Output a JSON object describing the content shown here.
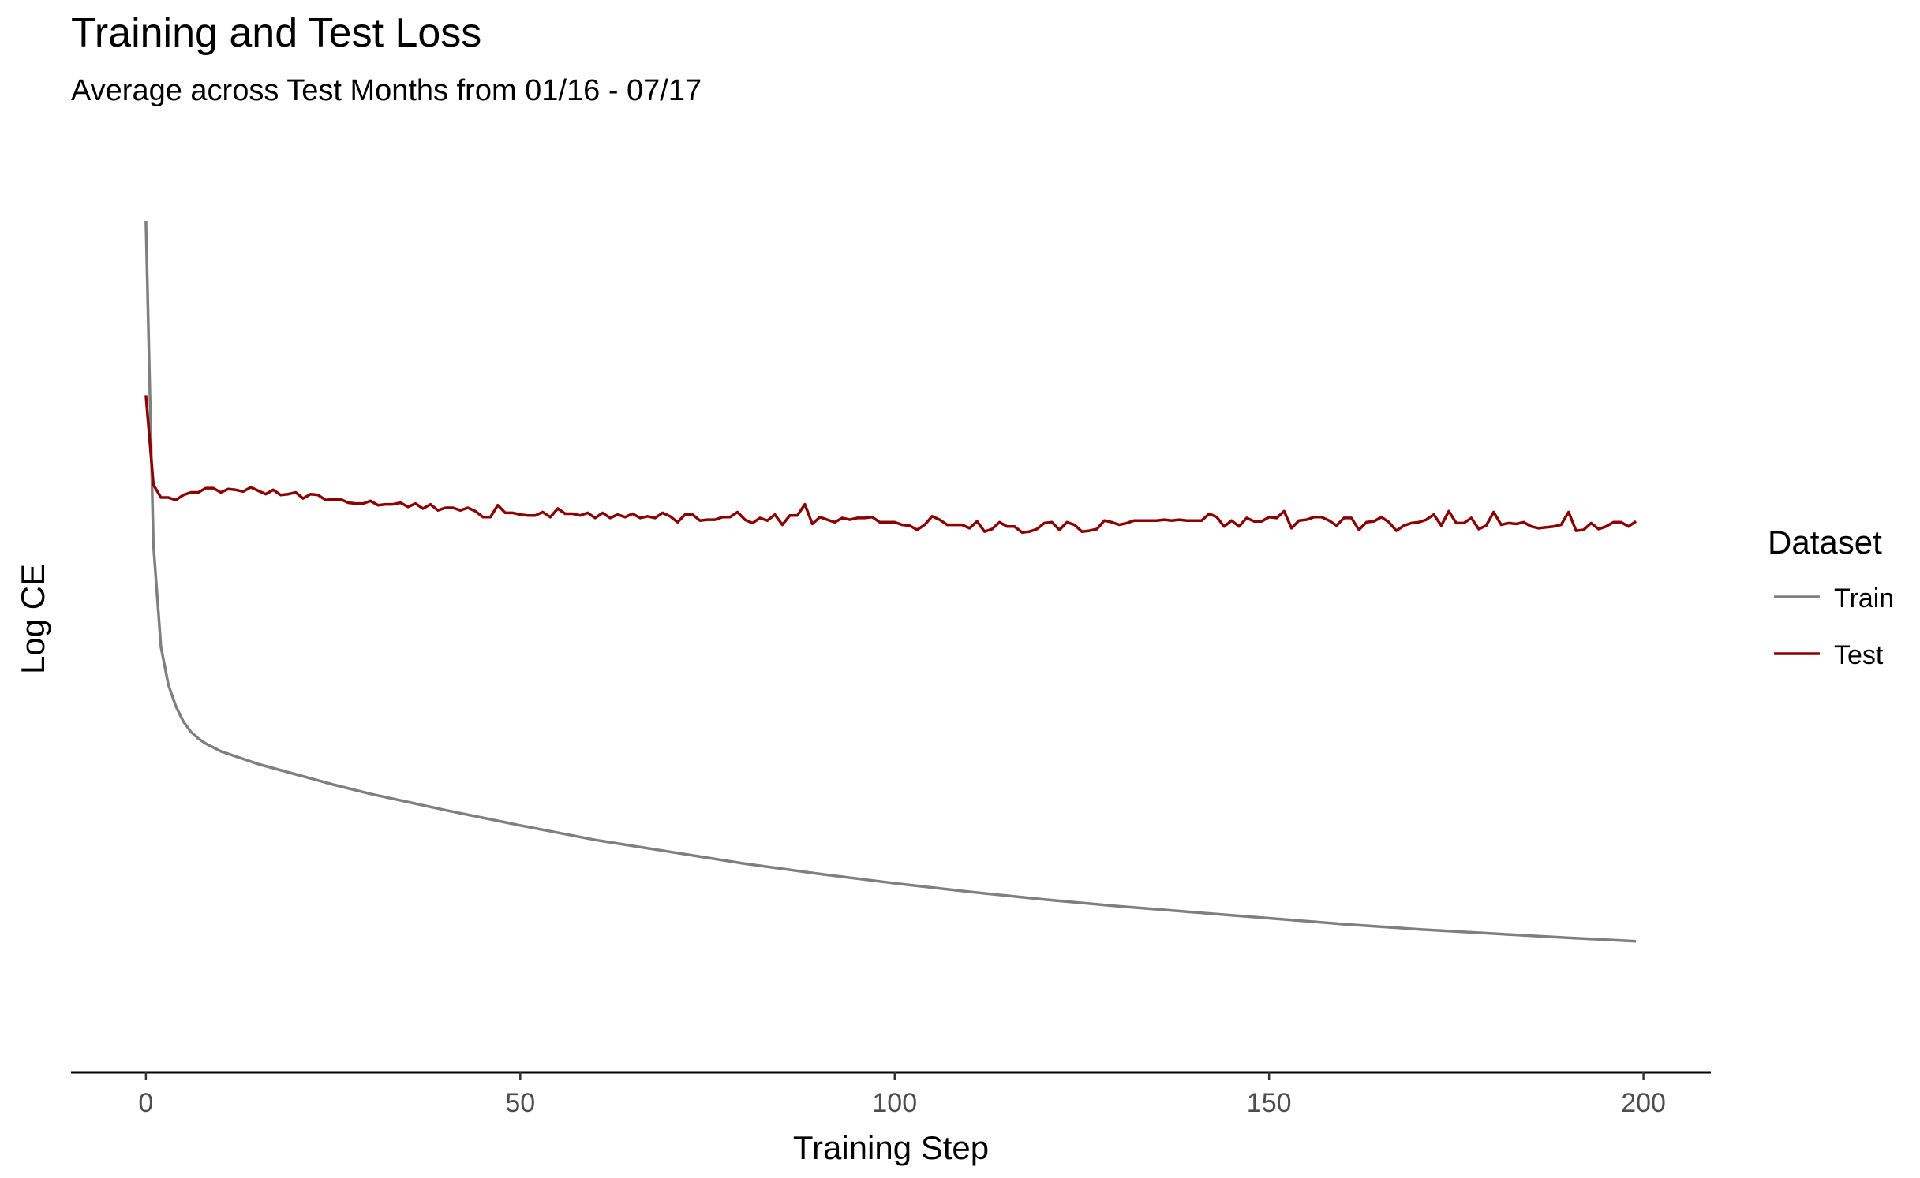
{
  "chart_data": {
    "type": "line",
    "title": "Training and Test Loss",
    "subtitle": "Average across Test Months from 01/16 - 07/17",
    "xlabel": "Training Step",
    "ylabel": "Log CE",
    "xlim": [
      -10,
      209
    ],
    "ylim": [
      0,
      1.05
    ],
    "x_ticks": [
      0,
      50,
      100,
      150,
      200
    ],
    "y_tick_labels_shown": false,
    "grid": false,
    "legend": {
      "title": "Dataset",
      "position": "right"
    },
    "series": [
      {
        "name": "Train",
        "color": "#7f7f7f",
        "points": [
          [
            0,
            1.0
          ],
          [
            1,
            0.62
          ],
          [
            2,
            0.5
          ],
          [
            3,
            0.455
          ],
          [
            4,
            0.43
          ],
          [
            5,
            0.412
          ],
          [
            6,
            0.4
          ],
          [
            7,
            0.392
          ],
          [
            8,
            0.386
          ],
          [
            10,
            0.377
          ],
          [
            15,
            0.362
          ],
          [
            20,
            0.35
          ],
          [
            25,
            0.338
          ],
          [
            30,
            0.327
          ],
          [
            40,
            0.308
          ],
          [
            50,
            0.29
          ],
          [
            60,
            0.273
          ],
          [
            70,
            0.259
          ],
          [
            80,
            0.245
          ],
          [
            90,
            0.233
          ],
          [
            100,
            0.222
          ],
          [
            110,
            0.212
          ],
          [
            120,
            0.203
          ],
          [
            130,
            0.195
          ],
          [
            140,
            0.188
          ],
          [
            150,
            0.181
          ],
          [
            160,
            0.174
          ],
          [
            170,
            0.168
          ],
          [
            180,
            0.163
          ],
          [
            190,
            0.158
          ],
          [
            199,
            0.154
          ]
        ]
      },
      {
        "name": "Test",
        "color": "#8b0000",
        "points": [
          [
            0,
            0.795
          ],
          [
            1,
            0.69
          ],
          [
            2,
            0.675
          ],
          [
            3,
            0.675
          ],
          [
            4,
            0.672
          ],
          [
            5,
            0.678
          ],
          [
            6,
            0.681
          ],
          [
            7,
            0.681
          ],
          [
            8,
            0.686
          ],
          [
            9,
            0.686
          ],
          [
            10,
            0.681
          ],
          [
            11,
            0.685
          ],
          [
            12,
            0.684
          ],
          [
            13,
            0.682
          ],
          [
            14,
            0.687
          ],
          [
            15,
            0.683
          ],
          [
            16,
            0.679
          ],
          [
            17,
            0.684
          ],
          [
            18,
            0.678
          ],
          [
            19,
            0.679
          ],
          [
            20,
            0.681
          ],
          [
            21,
            0.674
          ],
          [
            22,
            0.679
          ],
          [
            23,
            0.678
          ],
          [
            24,
            0.672
          ],
          [
            25,
            0.673
          ],
          [
            26,
            0.673
          ],
          [
            27,
            0.669
          ],
          [
            28,
            0.668
          ],
          [
            29,
            0.668
          ],
          [
            30,
            0.671
          ],
          [
            31,
            0.666
          ],
          [
            32,
            0.667
          ],
          [
            33,
            0.667
          ],
          [
            34,
            0.669
          ],
          [
            35,
            0.664
          ],
          [
            36,
            0.668
          ],
          [
            37,
            0.662
          ],
          [
            38,
            0.667
          ],
          [
            39,
            0.66
          ],
          [
            40,
            0.663
          ],
          [
            41,
            0.663
          ],
          [
            42,
            0.66
          ],
          [
            43,
            0.663
          ],
          [
            44,
            0.659
          ],
          [
            45,
            0.652
          ],
          [
            46,
            0.652
          ],
          [
            47,
            0.666
          ],
          [
            48,
            0.657
          ],
          [
            49,
            0.657
          ],
          [
            50,
            0.655
          ],
          [
            51,
            0.654
          ],
          [
            52,
            0.654
          ],
          [
            53,
            0.658
          ],
          [
            54,
            0.652
          ],
          [
            55,
            0.662
          ],
          [
            56,
            0.656
          ],
          [
            57,
            0.656
          ],
          [
            58,
            0.654
          ],
          [
            59,
            0.657
          ],
          [
            60,
            0.651
          ],
          [
            61,
            0.657
          ],
          [
            62,
            0.651
          ],
          [
            63,
            0.655
          ],
          [
            64,
            0.652
          ],
          [
            65,
            0.656
          ],
          [
            66,
            0.651
          ],
          [
            67,
            0.653
          ],
          [
            68,
            0.651
          ],
          [
            69,
            0.657
          ],
          [
            70,
            0.653
          ],
          [
            71,
            0.646
          ],
          [
            72,
            0.655
          ],
          [
            73,
            0.655
          ],
          [
            74,
            0.648
          ],
          [
            75,
            0.649
          ],
          [
            76,
            0.649
          ],
          [
            77,
            0.652
          ],
          [
            78,
            0.652
          ],
          [
            79,
            0.658
          ],
          [
            80,
            0.649
          ],
          [
            81,
            0.645
          ],
          [
            82,
            0.651
          ],
          [
            83,
            0.648
          ],
          [
            84,
            0.655
          ],
          [
            85,
            0.643
          ],
          [
            86,
            0.654
          ],
          [
            87,
            0.654
          ],
          [
            88,
            0.667
          ],
          [
            89,
            0.644
          ],
          [
            90,
            0.652
          ],
          [
            91,
            0.649
          ],
          [
            92,
            0.646
          ],
          [
            93,
            0.651
          ],
          [
            94,
            0.649
          ],
          [
            95,
            0.651
          ],
          [
            96,
            0.651
          ],
          [
            97,
            0.652
          ],
          [
            98,
            0.646
          ],
          [
            99,
            0.646
          ],
          [
            100,
            0.646
          ],
          [
            101,
            0.643
          ],
          [
            102,
            0.642
          ],
          [
            103,
            0.637
          ],
          [
            104,
            0.643
          ],
          [
            105,
            0.653
          ],
          [
            106,
            0.649
          ],
          [
            107,
            0.643
          ],
          [
            108,
            0.643
          ],
          [
            109,
            0.643
          ],
          [
            110,
            0.639
          ],
          [
            111,
            0.647
          ],
          [
            112,
            0.635
          ],
          [
            113,
            0.638
          ],
          [
            114,
            0.646
          ],
          [
            115,
            0.641
          ],
          [
            116,
            0.641
          ],
          [
            117,
            0.634
          ],
          [
            118,
            0.635
          ],
          [
            119,
            0.638
          ],
          [
            120,
            0.645
          ],
          [
            121,
            0.646
          ],
          [
            122,
            0.637
          ],
          [
            123,
            0.646
          ],
          [
            124,
            0.643
          ],
          [
            125,
            0.635
          ],
          [
            126,
            0.636
          ],
          [
            127,
            0.638
          ],
          [
            128,
            0.648
          ],
          [
            129,
            0.646
          ],
          [
            130,
            0.643
          ],
          [
            131,
            0.645
          ],
          [
            132,
            0.648
          ],
          [
            133,
            0.648
          ],
          [
            134,
            0.648
          ],
          [
            135,
            0.648
          ],
          [
            136,
            0.649
          ],
          [
            137,
            0.648
          ],
          [
            138,
            0.649
          ],
          [
            139,
            0.648
          ],
          [
            140,
            0.648
          ],
          [
            141,
            0.648
          ],
          [
            142,
            0.656
          ],
          [
            143,
            0.652
          ],
          [
            144,
            0.641
          ],
          [
            145,
            0.648
          ],
          [
            146,
            0.641
          ],
          [
            147,
            0.651
          ],
          [
            148,
            0.647
          ],
          [
            149,
            0.647
          ],
          [
            150,
            0.652
          ],
          [
            151,
            0.651
          ],
          [
            152,
            0.659
          ],
          [
            153,
            0.639
          ],
          [
            154,
            0.648
          ],
          [
            155,
            0.649
          ],
          [
            156,
            0.652
          ],
          [
            157,
            0.652
          ],
          [
            158,
            0.648
          ],
          [
            159,
            0.642
          ],
          [
            160,
            0.651
          ],
          [
            161,
            0.651
          ],
          [
            162,
            0.637
          ],
          [
            163,
            0.646
          ],
          [
            164,
            0.647
          ],
          [
            165,
            0.652
          ],
          [
            166,
            0.646
          ],
          [
            167,
            0.636
          ],
          [
            168,
            0.642
          ],
          [
            169,
            0.645
          ],
          [
            170,
            0.646
          ],
          [
            171,
            0.649
          ],
          [
            172,
            0.655
          ],
          [
            173,
            0.642
          ],
          [
            174,
            0.659
          ],
          [
            175,
            0.645
          ],
          [
            176,
            0.645
          ],
          [
            177,
            0.651
          ],
          [
            178,
            0.638
          ],
          [
            179,
            0.642
          ],
          [
            180,
            0.658
          ],
          [
            181,
            0.643
          ],
          [
            182,
            0.645
          ],
          [
            183,
            0.644
          ],
          [
            184,
            0.646
          ],
          [
            185,
            0.641
          ],
          [
            186,
            0.639
          ],
          [
            187,
            0.64
          ],
          [
            188,
            0.641
          ],
          [
            189,
            0.643
          ],
          [
            190,
            0.658
          ],
          [
            191,
            0.636
          ],
          [
            192,
            0.637
          ],
          [
            193,
            0.645
          ],
          [
            194,
            0.638
          ],
          [
            195,
            0.641
          ],
          [
            196,
            0.646
          ],
          [
            197,
            0.646
          ],
          [
            198,
            0.641
          ],
          [
            199,
            0.647
          ]
        ]
      }
    ]
  }
}
